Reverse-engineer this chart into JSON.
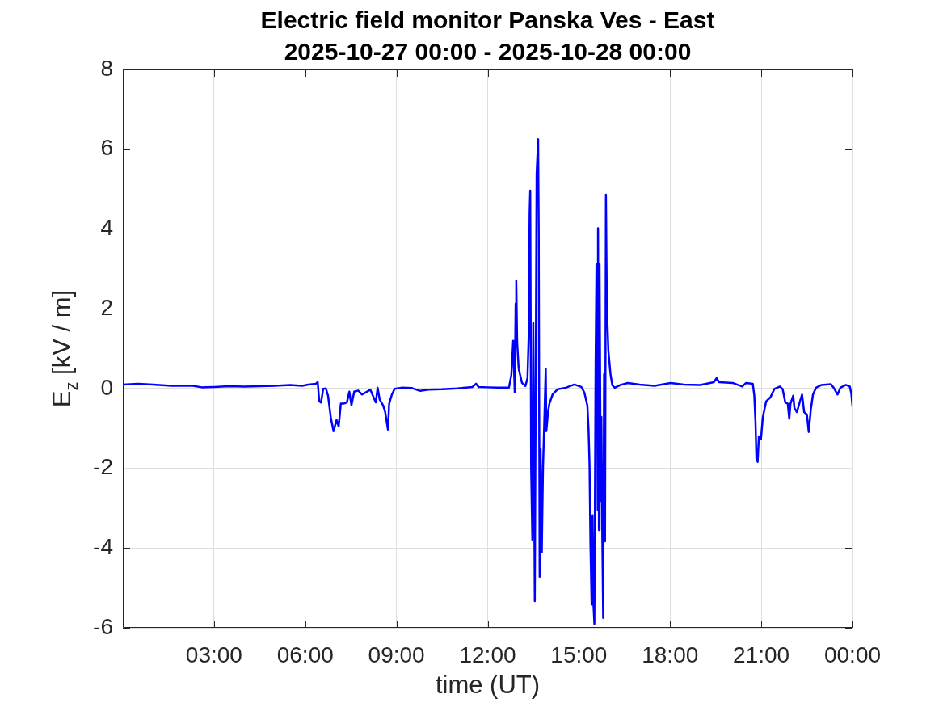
{
  "chart_data": {
    "type": "line",
    "title": "Electric field monitor Panska Ves - East",
    "subtitle": "2025-10-27 00:00 - 2025-10-28 00:00",
    "xlabel": "time (UT)",
    "ylabel": "E$_{z}$ [kV / m]",
    "color": "#0000ff",
    "grid": true,
    "xlim": [
      0,
      24
    ],
    "xticks": [
      {
        "value": 3,
        "label": "03:00"
      },
      {
        "value": 6,
        "label": "06:00"
      },
      {
        "value": 9,
        "label": "09:00"
      },
      {
        "value": 12,
        "label": "12:00"
      },
      {
        "value": 15,
        "label": "15:00"
      },
      {
        "value": 18,
        "label": "18:00"
      },
      {
        "value": 21,
        "label": "21:00"
      },
      {
        "value": 24,
        "label": "00:00"
      }
    ],
    "ylim": [
      -6,
      8
    ],
    "yticks": [
      -6,
      -4,
      -2,
      0,
      2,
      4,
      6,
      8
    ],
    "x": [
      0,
      0.5,
      1.0,
      1.6,
      2.3,
      2.6,
      3.0,
      3.5,
      4.0,
      4.5,
      5.0,
      5.5,
      5.9,
      6.1,
      6.35,
      6.41,
      6.46,
      6.52,
      6.59,
      6.68,
      6.75,
      6.84,
      6.93,
      7.03,
      7.1,
      7.17,
      7.26,
      7.37,
      7.45,
      7.52,
      7.61,
      7.74,
      7.87,
      8.14,
      8.32,
      8.38,
      8.45,
      8.56,
      8.63,
      8.72,
      8.76,
      8.85,
      8.94,
      9.16,
      9.51,
      9.78,
      10.05,
      10.5,
      11.0,
      11.5,
      11.62,
      11.7,
      12.0,
      12.33,
      12.7,
      12.78,
      12.84,
      12.89,
      12.92,
      12.94,
      12.97,
      13.02,
      13.13,
      13.24,
      13.31,
      13.35,
      13.38,
      13.4,
      13.43,
      13.47,
      13.5,
      13.55,
      13.59,
      13.61,
      13.66,
      13.68,
      13.71,
      13.74,
      13.78,
      13.82,
      13.87,
      13.91,
      13.93,
      13.98,
      14.03,
      14.14,
      14.3,
      14.57,
      14.85,
      15.08,
      15.18,
      15.28,
      15.32,
      15.35,
      15.38,
      15.42,
      15.45,
      15.47,
      15.51,
      15.55,
      15.58,
      15.62,
      15.63,
      15.66,
      15.68,
      15.72,
      15.74,
      15.77,
      15.8,
      15.83,
      15.86,
      15.89,
      15.92,
      15.97,
      16.04,
      16.1,
      16.18,
      16.37,
      16.61,
      17.0,
      17.49,
      18.02,
      18.46,
      18.99,
      19.44,
      19.53,
      19.61,
      20.06,
      20.37,
      20.5,
      20.72,
      20.77,
      20.81,
      20.84,
      20.88,
      20.92,
      20.99,
      21.05,
      21.16,
      21.3,
      21.43,
      21.61,
      21.7,
      21.79,
      21.87,
      21.92,
      21.96,
      22.05,
      22.09,
      22.17,
      22.25,
      22.34,
      22.41,
      22.5,
      22.56,
      22.63,
      22.7,
      22.8,
      22.98,
      23.29,
      23.38,
      23.51,
      23.6,
      23.78,
      23.91,
      23.96,
      24.0
    ],
    "values": [
      0.1,
      0.12,
      0.1,
      0.07,
      0.07,
      0.03,
      0.04,
      0.06,
      0.05,
      0.06,
      0.07,
      0.09,
      0.07,
      0.1,
      0.12,
      0.16,
      -0.32,
      -0.35,
      -0.01,
      0.0,
      -0.18,
      -0.72,
      -1.07,
      -0.79,
      -0.95,
      -0.38,
      -0.38,
      -0.35,
      -0.08,
      -0.42,
      -0.08,
      -0.05,
      -0.15,
      -0.03,
      -0.35,
      0.02,
      -0.28,
      -0.42,
      -0.59,
      -1.03,
      -0.38,
      -0.15,
      -0.01,
      0.02,
      0.01,
      -0.06,
      -0.03,
      -0.02,
      0.0,
      0.04,
      0.12,
      0.04,
      0.03,
      0.02,
      0.02,
      0.34,
      1.2,
      -0.1,
      2.13,
      2.7,
      1.15,
      0.5,
      0.14,
      0.06,
      0.26,
      1.32,
      4.4,
      4.96,
      -2.0,
      -3.79,
      1.64,
      -5.33,
      1.72,
      5.37,
      6.25,
      3.83,
      -4.72,
      -1.52,
      -4.11,
      -2.0,
      -0.63,
      0.5,
      -1.07,
      -0.63,
      -0.38,
      -0.14,
      -0.02,
      0.02,
      0.1,
      0.04,
      -0.1,
      -0.43,
      -1.07,
      -1.88,
      -3.9,
      -5.42,
      -3.18,
      -5.27,
      -5.9,
      0.59,
      3.12,
      -3.04,
      4.02,
      -3.55,
      3.12,
      -2.82,
      -0.71,
      -3.69,
      -5.75,
      0.36,
      -3.83,
      4.86,
      2.1,
      0.95,
      0.36,
      0.08,
      0.02,
      0.09,
      0.14,
      0.1,
      0.07,
      0.14,
      0.1,
      0.09,
      0.16,
      0.26,
      0.16,
      0.14,
      0.05,
      0.14,
      0.12,
      -0.18,
      -0.86,
      -1.76,
      -1.84,
      -1.2,
      -1.26,
      -0.72,
      -0.32,
      -0.22,
      -0.01,
      0.05,
      -0.01,
      -0.35,
      -0.38,
      -0.76,
      -0.38,
      -0.18,
      -0.49,
      -0.59,
      -0.38,
      -0.15,
      -0.59,
      -0.65,
      -1.09,
      -0.52,
      -0.15,
      0.02,
      0.09,
      0.11,
      0.02,
      -0.15,
      0.02,
      0.09,
      0.05,
      -0.12,
      -0.45
    ]
  }
}
